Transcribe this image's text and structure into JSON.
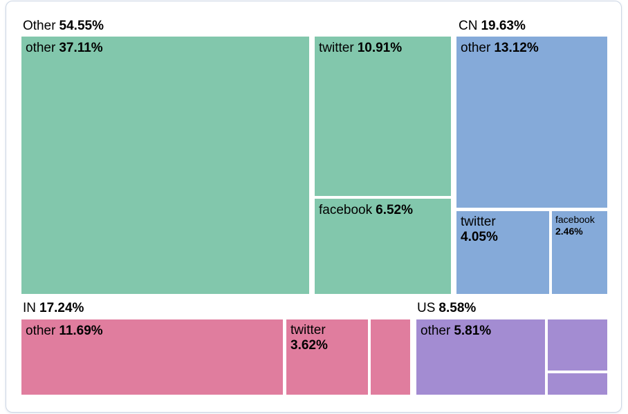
{
  "chart_data": {
    "type": "treemap",
    "title": "",
    "unit": "percent of total",
    "legend": "none",
    "groups": [
      {
        "name": "Other",
        "label": "Other",
        "pct_text": "54.55%",
        "value": 54.55,
        "color": "#82c7ac",
        "children": [
          {
            "label": "other",
            "pct_text": "37.11%",
            "value": 37.11
          },
          {
            "label": "twitter",
            "pct_text": "10.91%",
            "value": 10.91
          },
          {
            "label": "facebook",
            "pct_text": "6.52%",
            "value": 6.52
          }
        ]
      },
      {
        "name": "CN",
        "label": "CN",
        "pct_text": "19.63%",
        "value": 19.63,
        "color": "#85aad9",
        "children": [
          {
            "label": "other",
            "pct_text": "13.12%",
            "value": 13.12
          },
          {
            "label": "twitter",
            "pct_text": "4.05%",
            "value": 4.05
          },
          {
            "label": "facebook",
            "pct_text": "2.46%",
            "value": 2.46
          }
        ]
      },
      {
        "name": "IN",
        "label": "IN",
        "pct_text": "17.24%",
        "value": 17.24,
        "color": "#e07d9e",
        "children": [
          {
            "label": "other",
            "pct_text": "11.69%",
            "value": 11.69
          },
          {
            "label": "twitter",
            "pct_text": "3.62%",
            "value": 3.62
          },
          {
            "label": "",
            "pct_text": "",
            "value": 1.93,
            "estimated": true
          }
        ]
      },
      {
        "name": "US",
        "label": "US",
        "pct_text": "8.58%",
        "value": 8.58,
        "color": "#a38cd2",
        "children": [
          {
            "label": "other",
            "pct_text": "5.81%",
            "value": 5.81
          },
          {
            "label": "",
            "pct_text": "",
            "value": 1.97,
            "estimated": true
          },
          {
            "label": "",
            "pct_text": "",
            "value": 0.8,
            "estimated": true
          }
        ]
      }
    ]
  }
}
